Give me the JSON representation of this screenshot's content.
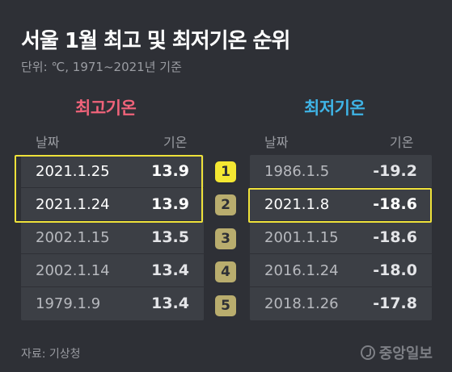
{
  "header": {
    "title": "서울 1월 최고 및 최저기온 순위",
    "subtitle": "단위: ℃, 1971~2021년 기준"
  },
  "high": {
    "title": "최고기온",
    "col_date": "날짜",
    "col_temp": "기온",
    "rows": [
      {
        "date": "2021.1.25",
        "temp": "13.9"
      },
      {
        "date": "2021.1.24",
        "temp": "13.9"
      },
      {
        "date": "2002.1.15",
        "temp": "13.5"
      },
      {
        "date": "2002.1.14",
        "temp": "13.4"
      },
      {
        "date": "1979.1.9",
        "temp": "13.4"
      }
    ]
  },
  "low": {
    "title": "최저기온",
    "col_date": "날짜",
    "col_temp": "기온",
    "rows": [
      {
        "date": "1986.1.5",
        "temp": "-19.2"
      },
      {
        "date": "2021.1.8",
        "temp": "-18.6"
      },
      {
        "date": "2001.1.15",
        "temp": "-18.6"
      },
      {
        "date": "2016.1.24",
        "temp": "-18.0"
      },
      {
        "date": "2018.1.26",
        "temp": "-17.8"
      }
    ]
  },
  "ranks": [
    "1",
    "2",
    "3",
    "4",
    "5"
  ],
  "footer": {
    "source": "자료: 기상청",
    "brand": "중앙일보"
  },
  "colors": {
    "background": "#2e3036",
    "high_title": "#f0637a",
    "low_title": "#3fb4e6",
    "highlight_frame": "#efe23a",
    "rank_top": "#f4e732",
    "rank_other": "#b9ad6e"
  }
}
